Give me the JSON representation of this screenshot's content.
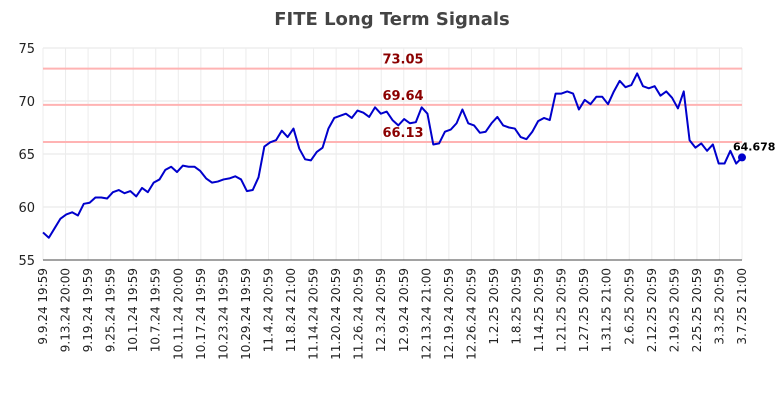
{
  "chart_data": {
    "type": "line",
    "title": "FITE Long Term Signals",
    "xlabel": "",
    "ylabel": "",
    "ylim": [
      55,
      75
    ],
    "yticks": [
      "55",
      "60",
      "65",
      "70",
      "75"
    ],
    "grid": true,
    "x_tick_labels": [
      "9.9.24 19:59",
      "9.13.24 20:00",
      "9.19.24 19:59",
      "9.25.24 19:59",
      "10.1.24 19:59",
      "10.7.24 19:59",
      "10.11.24 20:00",
      "10.17.24 19:59",
      "10.23.24 19:59",
      "10.29.24 19:59",
      "11.4.24 20:59",
      "11.8.24 21:00",
      "11.14.24 20:59",
      "11.20.24 20:59",
      "11.26.24 20:59",
      "12.3.24 20:59",
      "12.9.24 20:59",
      "12.13.24 21:00",
      "12.19.24 20:59",
      "12.26.24 20:59",
      "1.2.25 20:59",
      "1.8.25 20:59",
      "1.14.25 20:59",
      "1.21.25 20:59",
      "1.27.25 20:59",
      "1.31.25 21:00",
      "2.6.25 20:59",
      "2.12.25 20:59",
      "2.19.25 20:59",
      "2.25.25 20:59",
      "3.3.25 20:59",
      "3.7.25 21:00"
    ],
    "series": [
      {
        "color": "#0000cc",
        "values": [
          57.6,
          57.1,
          58.0,
          58.9,
          59.3,
          59.5,
          59.2,
          60.3,
          60.4,
          60.9,
          60.9,
          60.8,
          61.4,
          61.6,
          61.3,
          61.5,
          61.0,
          61.8,
          61.4,
          62.3,
          62.6,
          63.5,
          63.8,
          63.3,
          63.9,
          63.8,
          63.8,
          63.4,
          62.7,
          62.3,
          62.4,
          62.6,
          62.7,
          62.9,
          62.6,
          61.5,
          61.6,
          62.8,
          65.7,
          66.1,
          66.3,
          67.2,
          66.6,
          67.4,
          65.5,
          64.5,
          64.4,
          65.2,
          65.6,
          67.4,
          68.4,
          68.6,
          68.8,
          68.4,
          69.1,
          68.9,
          68.5,
          69.4,
          68.8,
          69.0,
          68.2,
          67.7,
          68.3,
          67.9,
          68.0,
          69.4,
          68.8,
          65.9,
          66.0,
          67.1,
          67.3,
          67.9,
          69.2,
          67.9,
          67.7,
          67.0,
          67.1,
          67.9,
          68.5,
          67.7,
          67.5,
          67.4,
          66.6,
          66.4,
          67.1,
          68.1,
          68.4,
          68.2,
          70.7,
          70.7,
          70.9,
          70.7,
          69.2,
          70.1,
          69.7,
          70.4,
          70.4,
          69.7,
          70.9,
          71.9,
          71.3,
          71.5,
          72.6,
          71.4,
          71.2,
          71.4,
          70.5,
          70.9,
          70.3,
          69.3,
          70.9,
          66.3,
          65.6,
          66.0,
          65.3,
          65.9,
          64.1,
          64.1,
          65.3,
          64.1,
          64.678
        ]
      }
    ],
    "levels": [
      {
        "value": 73.05,
        "label": "73.05",
        "color": "#ffb3b3"
      },
      {
        "value": 69.64,
        "label": "69.64",
        "color": "#ffb3b3"
      },
      {
        "value": 66.13,
        "label": "66.13",
        "color": "#ffb3b3"
      }
    ],
    "last_point": {
      "value": 64.678,
      "label": "64.678",
      "color": "#0000cc"
    }
  }
}
